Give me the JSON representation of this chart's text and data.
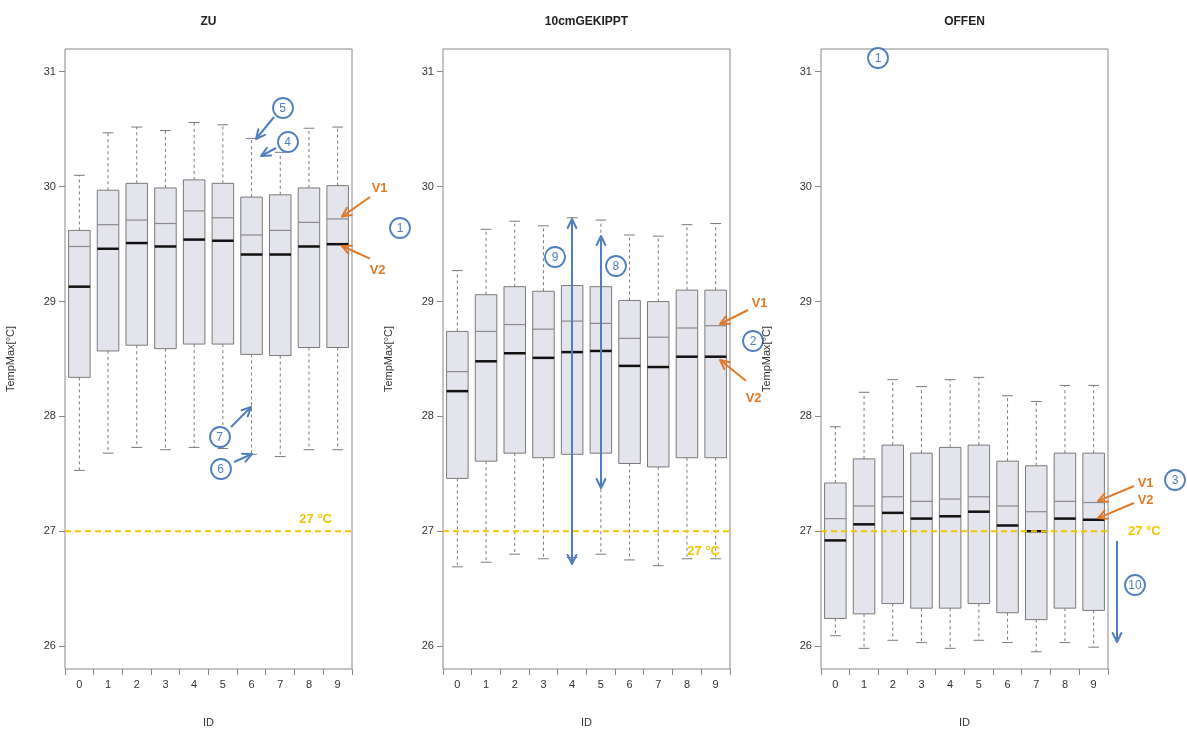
{
  "chart_data": [
    {
      "type": "box",
      "title": "ZU",
      "xlabel": "ID",
      "ylabel": "TempMax[°C]",
      "categories": [
        "0",
        "1",
        "2",
        "3",
        "4",
        "5",
        "6",
        "7",
        "8",
        "9"
      ],
      "ylim": [
        25.8,
        31.2
      ],
      "yticks": [
        26,
        27,
        28,
        29,
        30,
        31
      ],
      "grid": false,
      "series": [
        {
          "color": "#e4e4ec",
          "boxes": [
            {
              "low": 27.53,
              "q1": 28.34,
              "median": 29.13,
              "q3": 29.62,
              "high": 30.1,
              "mean": 29.48
            },
            {
              "low": 27.68,
              "q1": 28.57,
              "median": 29.46,
              "q3": 29.97,
              "high": 30.47,
              "mean": 29.67
            },
            {
              "low": 27.73,
              "q1": 28.62,
              "median": 29.51,
              "q3": 30.03,
              "high": 30.52,
              "mean": 29.71
            },
            {
              "low": 27.71,
              "q1": 28.59,
              "median": 29.48,
              "q3": 29.99,
              "high": 30.49,
              "mean": 29.68
            },
            {
              "low": 27.73,
              "q1": 28.63,
              "median": 29.54,
              "q3": 30.06,
              "high": 30.56,
              "mean": 29.79
            },
            {
              "low": 27.72,
              "q1": 28.63,
              "median": 29.53,
              "q3": 30.03,
              "high": 30.54,
              "mean": 29.73
            },
            {
              "low": 27.67,
              "q1": 28.54,
              "median": 29.41,
              "q3": 29.91,
              "high": 30.42,
              "mean": 29.58
            },
            {
              "low": 27.65,
              "q1": 28.53,
              "median": 29.41,
              "q3": 29.93,
              "high": 30.3,
              "mean": 29.62
            },
            {
              "low": 27.71,
              "q1": 28.6,
              "median": 29.48,
              "q3": 29.99,
              "high": 30.51,
              "mean": 29.69
            },
            {
              "low": 27.71,
              "q1": 28.6,
              "median": 29.5,
              "q3": 30.01,
              "high": 30.52,
              "mean": 29.72
            }
          ]
        }
      ],
      "ref_lines": [
        {
          "axis": "y",
          "value": 27,
          "label": "27 °C",
          "color": "#f2c500",
          "line_style": "dashed"
        }
      ],
      "annotations": [
        {
          "text": "V1",
          "x": "9",
          "y": 29.72
        },
        {
          "text": "V2",
          "x": "9",
          "y": 29.5
        },
        "1",
        {
          "text": "5",
          "x": "6",
          "y": 30.42
        },
        {
          "text": "4",
          "x": "6",
          "y": 30.27
        },
        {
          "text": "7",
          "x": "6",
          "y": 28.08
        },
        {
          "text": "6",
          "x": "6",
          "y": 27.67
        }
      ]
    },
    {
      "type": "box",
      "title": "10cmGEKIPPT",
      "xlabel": "ID",
      "ylabel": "TempMax[°C]",
      "categories": [
        "0",
        "1",
        "2",
        "3",
        "4",
        "5",
        "6",
        "7",
        "8",
        "9"
      ],
      "ylim": [
        25.8,
        31.2
      ],
      "yticks": [
        26,
        27,
        28,
        29,
        30,
        31
      ],
      "grid": false,
      "series": [
        {
          "color": "#e4e4ec",
          "boxes": [
            {
              "low": 26.69,
              "q1": 27.46,
              "median": 28.22,
              "q3": 28.74,
              "high": 29.27,
              "mean": 28.39
            },
            {
              "low": 26.73,
              "q1": 27.61,
              "median": 28.48,
              "q3": 29.06,
              "high": 29.63,
              "mean": 28.74
            },
            {
              "low": 26.8,
              "q1": 27.68,
              "median": 28.55,
              "q3": 29.13,
              "high": 29.7,
              "mean": 28.8
            },
            {
              "low": 26.76,
              "q1": 27.64,
              "median": 28.51,
              "q3": 29.09,
              "high": 29.66,
              "mean": 28.76
            },
            {
              "low": 26.77,
              "q1": 27.67,
              "median": 28.56,
              "q3": 29.14,
              "high": 29.73,
              "mean": 28.83
            },
            {
              "low": 26.8,
              "q1": 27.68,
              "median": 28.57,
              "q3": 29.13,
              "high": 29.71,
              "mean": 28.81
            },
            {
              "low": 26.75,
              "q1": 27.59,
              "median": 28.44,
              "q3": 29.01,
              "high": 29.58,
              "mean": 28.68
            },
            {
              "low": 26.7,
              "q1": 27.56,
              "median": 28.43,
              "q3": 29.0,
              "high": 29.57,
              "mean": 28.69
            },
            {
              "low": 26.76,
              "q1": 27.64,
              "median": 28.52,
              "q3": 29.1,
              "high": 29.67,
              "mean": 28.77
            },
            {
              "low": 26.76,
              "q1": 27.64,
              "median": 28.52,
              "q3": 29.1,
              "high": 29.68,
              "mean": 28.79
            }
          ]
        }
      ],
      "ref_lines": [
        {
          "axis": "y",
          "value": 27,
          "label": "27 °C",
          "color": "#f2c500",
          "line_style": "dashed"
        }
      ],
      "annotations": [
        {
          "text": "9",
          "x": "4",
          "y": 29.72
        },
        {
          "text": "8",
          "x": "5",
          "y": 29.57
        },
        {
          "text": "V1",
          "x": "9",
          "y": 28.79
        },
        {
          "text": "V2",
          "x": "9",
          "y": 28.52
        },
        "2"
      ]
    },
    {
      "type": "box",
      "title": "OFFEN",
      "xlabel": "ID",
      "ylabel": "TempMax[°C]",
      "categories": [
        "0",
        "1",
        "2",
        "3",
        "4",
        "5",
        "6",
        "7",
        "8",
        "9"
      ],
      "ylim": [
        25.8,
        31.2
      ],
      "yticks": [
        26,
        27,
        28,
        29,
        30,
        31
      ],
      "grid": false,
      "series": [
        {
          "color": "#e4e4ec",
          "boxes": [
            {
              "low": 26.09,
              "q1": 26.24,
              "median": 26.92,
              "q3": 27.42,
              "high": 27.91,
              "mean": 27.11
            },
            {
              "low": 25.98,
              "q1": 26.28,
              "median": 27.06,
              "q3": 27.63,
              "high": 28.21,
              "mean": 27.22
            },
            {
              "low": 26.05,
              "q1": 26.37,
              "median": 27.16,
              "q3": 27.75,
              "high": 28.32,
              "mean": 27.3
            },
            {
              "low": 26.03,
              "q1": 26.33,
              "median": 27.11,
              "q3": 27.68,
              "high": 28.26,
              "mean": 27.26
            },
            {
              "low": 25.98,
              "q1": 26.33,
              "median": 27.13,
              "q3": 27.73,
              "high": 28.32,
              "mean": 27.28
            },
            {
              "low": 26.05,
              "q1": 26.37,
              "median": 27.17,
              "q3": 27.75,
              "high": 28.34,
              "mean": 27.3
            },
            {
              "low": 26.03,
              "q1": 26.29,
              "median": 27.05,
              "q3": 27.61,
              "high": 28.18,
              "mean": 27.22
            },
            {
              "low": 25.95,
              "q1": 26.23,
              "median": 27.0,
              "q3": 27.57,
              "high": 28.13,
              "mean": 27.17
            },
            {
              "low": 26.03,
              "q1": 26.33,
              "median": 27.11,
              "q3": 27.68,
              "high": 28.27,
              "mean": 27.26
            },
            {
              "low": 25.99,
              "q1": 26.31,
              "median": 27.1,
              "q3": 27.68,
              "high": 28.27,
              "mean": 27.25
            }
          ]
        }
      ],
      "ref_lines": [
        {
          "axis": "y",
          "value": 27,
          "label": "27 °C",
          "color": "#f2c500",
          "line_style": "dashed"
        }
      ],
      "annotations": [
        "1",
        {
          "text": "V1",
          "x": "9",
          "y": 27.25
        },
        {
          "text": "V2",
          "x": "9",
          "y": 27.1
        },
        "3",
        "10"
      ]
    }
  ]
}
